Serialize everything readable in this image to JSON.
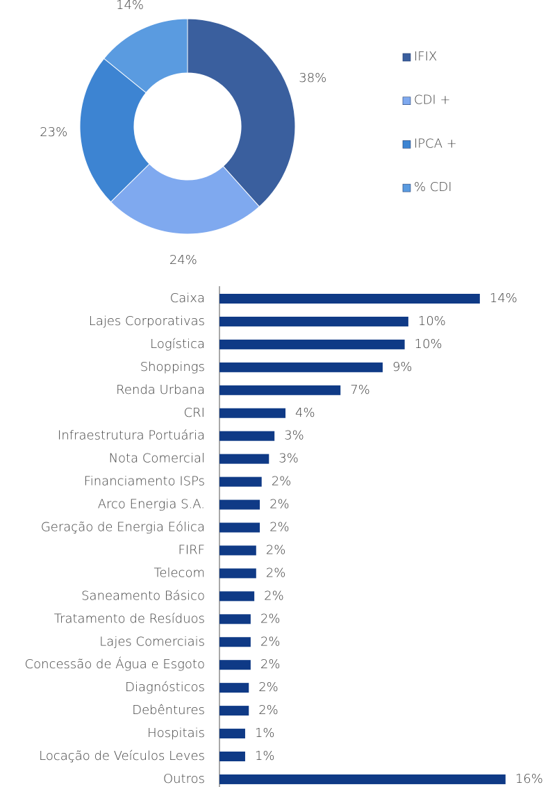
{
  "chart_data": [
    {
      "type": "donut",
      "categories": [
        "IFIX",
        "CDI +",
        "IPCA +",
        "% CDI"
      ],
      "values": [
        38,
        24,
        23,
        14
      ],
      "value_labels": [
        "38%",
        "24%",
        "23%",
        "14%"
      ],
      "colors": [
        "#3a5f9e",
        "#7fa9ef",
        "#3d84d2",
        "#5a9be0"
      ],
      "legend": "right"
    },
    {
      "type": "hbar",
      "categories": [
        "Caixa",
        "Lajes Corporativas",
        "Logística",
        "Shoppings",
        "Renda Urbana",
        "CRI",
        "Infraestrutura Portuária",
        "Nota Comercial",
        "Financiamento ISPs",
        "Arco Energia S.A.",
        "Geração de Energia Eólica",
        "FIRF",
        "Telecom",
        "Saneamento Básico",
        "Tratamento de Resíduos",
        "Lajes Comerciais",
        "Concessão de Água e Esgoto",
        "Diagnósticos",
        "Debêntures",
        "Hospitais",
        "Locação de Veículos Leves",
        "Outros"
      ],
      "values": [
        14.2,
        10.3,
        10.1,
        8.9,
        6.6,
        3.6,
        3.0,
        2.7,
        2.3,
        2.2,
        2.2,
        2.0,
        2.0,
        1.9,
        1.7,
        1.7,
        1.7,
        1.6,
        1.6,
        1.4,
        1.4,
        15.6
      ],
      "value_labels": [
        "14%",
        "10%",
        "10%",
        "9%",
        "7%",
        "4%",
        "3%",
        "3%",
        "2%",
        "2%",
        "2%",
        "2%",
        "2%",
        "2%",
        "2%",
        "2%",
        "2%",
        "2%",
        "2%",
        "1%",
        "1%",
        "16%"
      ],
      "color": "#0f3a86"
    }
  ]
}
